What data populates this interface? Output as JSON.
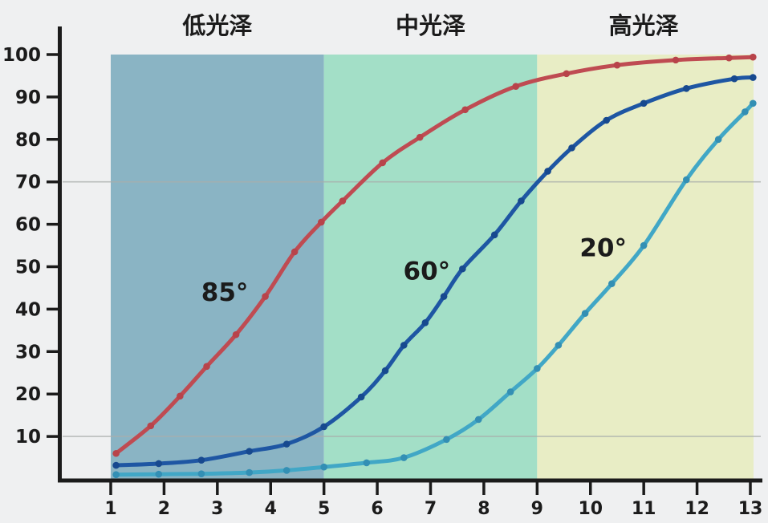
{
  "figure": {
    "background_color": "#eff0f1",
    "plot": {
      "axis_color": "#1b1b1b",
      "grid_color": "#a9aeab"
    }
  },
  "chart_data": {
    "type": "line",
    "title": "",
    "xlabel": "",
    "ylabel": "",
    "xlim": [
      1,
      13
    ],
    "ylim": [
      0,
      100
    ],
    "x_tick_labels": [
      "1",
      "2",
      "3",
      "4",
      "5",
      "6",
      "7",
      "8",
      "9",
      "10",
      "11",
      "12",
      "13"
    ],
    "y_tick_labels": [
      "10",
      "20",
      "30",
      "40",
      "50",
      "60",
      "70",
      "80",
      "90",
      "100"
    ],
    "grid_y_values": [
      10,
      70
    ],
    "legend_position": "none",
    "regions": [
      {
        "label": "低光泽",
        "x_start": 1,
        "x_end": 5,
        "color": "#8ab4c4"
      },
      {
        "label": "中光泽",
        "x_start": 5,
        "x_end": 9,
        "color": "#a3dfc7"
      },
      {
        "label": "高光泽",
        "x_start": 9,
        "x_end": 13.06,
        "color": "#e8edc5"
      }
    ],
    "series": [
      {
        "name": "85°",
        "color": "#bf4b52",
        "marker_color": "#b8434a",
        "label": {
          "text": "85°",
          "x": 3.14,
          "y": 42
        },
        "points": [
          [
            1.1,
            6
          ],
          [
            1.75,
            12.5
          ],
          [
            2.3,
            19.5
          ],
          [
            2.8,
            26.5
          ],
          [
            3.35,
            34
          ],
          [
            3.9,
            43
          ],
          [
            4.45,
            53.5
          ],
          [
            4.95,
            60.5
          ],
          [
            5.35,
            65.5
          ],
          [
            6.1,
            74.5
          ],
          [
            6.8,
            80.5
          ],
          [
            7.65,
            87
          ],
          [
            8.6,
            92.5
          ],
          [
            9.55,
            95.5
          ],
          [
            10.5,
            97.5
          ],
          [
            11.6,
            98.7
          ],
          [
            12.6,
            99.2
          ],
          [
            13.05,
            99.4
          ]
        ]
      },
      {
        "name": "60°",
        "color": "#1e56a3",
        "marker_color": "#17498f",
        "label": {
          "text": "60°",
          "x": 6.93,
          "y": 47
        },
        "points": [
          [
            1.1,
            3.2
          ],
          [
            1.9,
            3.6
          ],
          [
            2.7,
            4.4
          ],
          [
            3.6,
            6.5
          ],
          [
            4.3,
            8.2
          ],
          [
            5.0,
            12.3
          ],
          [
            5.7,
            19.3
          ],
          [
            6.15,
            25.5
          ],
          [
            6.5,
            31.5
          ],
          [
            6.9,
            36.8
          ],
          [
            7.25,
            43
          ],
          [
            7.6,
            49.5
          ],
          [
            8.2,
            57.5
          ],
          [
            8.7,
            65.5
          ],
          [
            9.2,
            72.5
          ],
          [
            9.65,
            78
          ],
          [
            10.3,
            84.5
          ],
          [
            11.0,
            88.5
          ],
          [
            11.8,
            92
          ],
          [
            12.7,
            94.3
          ],
          [
            13.05,
            94.6
          ]
        ]
      },
      {
        "name": "20°",
        "color": "#41a7c6",
        "marker_color": "#338fb4",
        "label": {
          "text": "20°",
          "x": 10.24,
          "y": 52.5
        },
        "points": [
          [
            1.1,
            1
          ],
          [
            1.9,
            1.1
          ],
          [
            2.7,
            1.2
          ],
          [
            3.6,
            1.5
          ],
          [
            4.3,
            2
          ],
          [
            5.0,
            2.8
          ],
          [
            5.8,
            3.8
          ],
          [
            6.5,
            5
          ],
          [
            7.3,
            9.3
          ],
          [
            7.9,
            14
          ],
          [
            8.5,
            20.5
          ],
          [
            9.0,
            26
          ],
          [
            9.4,
            31.5
          ],
          [
            9.9,
            39
          ],
          [
            10.4,
            46
          ],
          [
            11.0,
            55
          ],
          [
            11.8,
            70.5
          ],
          [
            12.4,
            80
          ],
          [
            12.9,
            86.5
          ],
          [
            13.05,
            88.5
          ]
        ]
      }
    ]
  }
}
